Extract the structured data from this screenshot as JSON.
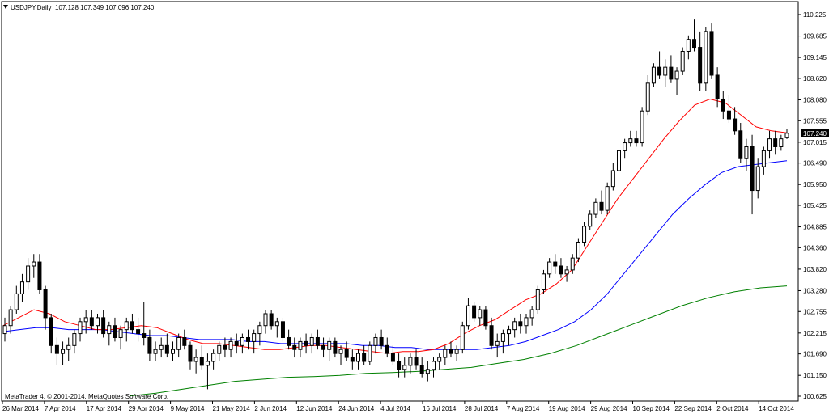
{
  "header": {
    "symbol_label": "USDJPY,Daily",
    "ohlc_label": "107.128 107.349 107.096 107.240"
  },
  "footer": {
    "copyright": "MetaTrader 4, © 2001-2014, MetaQuotes Software Corp."
  },
  "current_price_label": "107.240",
  "colors": {
    "background": "#ffffff",
    "candle": "#000000",
    "ma_red": "#ff0000",
    "ma_blue": "#0000ff",
    "ma_green": "#008000",
    "price_tag_bg": "#000000",
    "price_tag_fg": "#ffffff"
  },
  "chart_data": {
    "type": "candlestick",
    "y_ticks": [
      "110.225",
      "109.685",
      "109.145",
      "108.620",
      "108.080",
      "107.555",
      "107.015",
      "106.490",
      "105.950",
      "105.425",
      "104.885",
      "104.360",
      "103.820",
      "103.280",
      "102.755",
      "102.215",
      "101.690",
      "101.150",
      "100.625"
    ],
    "x_ticks": [
      "26 Mar 2014",
      "7 Apr 2014",
      "17 Apr 2014",
      "29 Apr 2014",
      "9 May 2014",
      "21 May 2014",
      "2 Jun 2014",
      "12 Jun 2014",
      "24 Jun 2014",
      "4 Jul 2014",
      "16 Jul 2014",
      "28 Jul 2014",
      "7 Aug 2014",
      "19 Aug 2014",
      "29 Aug 2014",
      "10 Sep 2014",
      "22 Sep 2014",
      "2 Oct 2014",
      "14 Oct 2014"
    ],
    "ylim": [
      100.625,
      110.225
    ],
    "candles": [
      [
        102.2,
        102.6,
        102.0,
        102.4
      ],
      [
        102.4,
        102.9,
        102.2,
        102.8
      ],
      [
        102.8,
        103.4,
        102.7,
        103.2
      ],
      [
        103.2,
        103.7,
        103.0,
        103.5
      ],
      [
        103.5,
        104.1,
        103.3,
        103.9
      ],
      [
        103.9,
        104.2,
        103.6,
        104.0
      ],
      [
        104.0,
        104.2,
        103.2,
        103.3
      ],
      [
        103.3,
        103.4,
        102.3,
        102.6
      ],
      [
        102.6,
        102.7,
        101.7,
        101.9
      ],
      [
        101.9,
        102.1,
        101.4,
        101.7
      ],
      [
        101.7,
        102.0,
        101.4,
        101.8
      ],
      [
        101.8,
        102.1,
        101.5,
        101.9
      ],
      [
        101.9,
        102.3,
        101.7,
        102.2
      ],
      [
        102.2,
        102.6,
        102.0,
        102.5
      ],
      [
        102.5,
        102.8,
        102.2,
        102.6
      ],
      [
        102.6,
        102.8,
        102.3,
        102.4
      ],
      [
        102.4,
        102.7,
        102.2,
        102.6
      ],
      [
        102.6,
        102.8,
        102.1,
        102.2
      ],
      [
        102.2,
        102.5,
        101.9,
        102.4
      ],
      [
        102.4,
        102.6,
        102.0,
        102.1
      ],
      [
        102.1,
        102.4,
        101.8,
        102.3
      ],
      [
        102.3,
        102.6,
        102.0,
        102.5
      ],
      [
        102.5,
        102.7,
        102.2,
        102.3
      ],
      [
        102.3,
        102.6,
        102.0,
        102.2
      ],
      [
        102.2,
        103.0,
        101.9,
        102.1
      ],
      [
        102.1,
        102.3,
        101.5,
        101.7
      ],
      [
        101.7,
        102.0,
        101.5,
        101.8
      ],
      [
        101.8,
        102.1,
        101.6,
        101.9
      ],
      [
        101.9,
        102.2,
        101.6,
        101.7
      ],
      [
        101.7,
        102.0,
        101.5,
        101.8
      ],
      [
        101.8,
        102.2,
        101.6,
        102.1
      ],
      [
        102.1,
        102.3,
        101.8,
        101.9
      ],
      [
        101.9,
        102.0,
        101.3,
        101.5
      ],
      [
        101.5,
        101.8,
        101.2,
        101.6
      ],
      [
        101.6,
        101.9,
        101.3,
        101.4
      ],
      [
        101.4,
        101.7,
        100.8,
        101.5
      ],
      [
        101.5,
        101.8,
        101.3,
        101.7
      ],
      [
        101.7,
        102.0,
        101.5,
        101.9
      ],
      [
        101.9,
        102.1,
        101.6,
        101.8
      ],
      [
        101.8,
        102.1,
        101.6,
        102.0
      ],
      [
        102.0,
        102.2,
        101.7,
        101.9
      ],
      [
        101.9,
        102.2,
        101.7,
        102.1
      ],
      [
        102.1,
        102.3,
        101.8,
        102.0
      ],
      [
        102.0,
        102.3,
        101.7,
        102.2
      ],
      [
        102.2,
        102.5,
        101.9,
        102.4
      ],
      [
        102.4,
        102.8,
        102.2,
        102.7
      ],
      [
        102.7,
        102.8,
        102.3,
        102.4
      ],
      [
        102.4,
        102.6,
        102.1,
        102.5
      ],
      [
        102.5,
        102.6,
        102.0,
        102.1
      ],
      [
        102.1,
        102.3,
        101.8,
        101.9
      ],
      [
        101.9,
        102.1,
        101.6,
        101.8
      ],
      [
        101.8,
        102.1,
        101.6,
        102.0
      ],
      [
        102.0,
        102.2,
        101.7,
        101.9
      ],
      [
        101.9,
        102.2,
        101.7,
        102.1
      ],
      [
        102.1,
        102.3,
        101.8,
        101.9
      ],
      [
        101.9,
        102.1,
        101.6,
        101.8
      ],
      [
        101.8,
        102.1,
        101.5,
        102.0
      ],
      [
        102.0,
        102.1,
        101.6,
        101.7
      ],
      [
        101.7,
        101.9,
        101.4,
        101.8
      ],
      [
        101.8,
        102.0,
        101.5,
        101.6
      ],
      [
        101.6,
        101.8,
        101.3,
        101.5
      ],
      [
        101.5,
        101.8,
        101.3,
        101.7
      ],
      [
        101.7,
        101.9,
        101.4,
        101.5
      ],
      [
        101.5,
        102.0,
        101.4,
        101.9
      ],
      [
        101.9,
        102.2,
        101.7,
        102.1
      ],
      [
        102.1,
        102.3,
        101.8,
        101.9
      ],
      [
        101.9,
        102.1,
        101.6,
        101.7
      ],
      [
        101.7,
        101.9,
        101.4,
        101.5
      ],
      [
        101.5,
        101.7,
        101.1,
        101.3
      ],
      [
        101.3,
        101.6,
        101.1,
        101.4
      ],
      [
        101.4,
        101.7,
        101.2,
        101.6
      ],
      [
        101.6,
        101.8,
        101.3,
        101.4
      ],
      [
        101.4,
        101.6,
        101.1,
        101.2
      ],
      [
        101.2,
        101.5,
        101.0,
        101.3
      ],
      [
        101.3,
        101.6,
        101.1,
        101.5
      ],
      [
        101.5,
        101.7,
        101.3,
        101.6
      ],
      [
        101.6,
        101.9,
        101.4,
        101.8
      ],
      [
        101.8,
        102.0,
        101.6,
        101.7
      ],
      [
        101.7,
        101.9,
        101.5,
        101.8
      ],
      [
        101.8,
        102.5,
        101.7,
        102.4
      ],
      [
        102.4,
        103.1,
        102.3,
        102.9
      ],
      [
        102.9,
        103.0,
        102.5,
        102.6
      ],
      [
        102.6,
        102.9,
        102.4,
        102.8
      ],
      [
        102.8,
        102.9,
        102.3,
        102.4
      ],
      [
        102.4,
        102.6,
        101.8,
        101.9
      ],
      [
        101.9,
        102.2,
        101.6,
        102.0
      ],
      [
        102.0,
        102.3,
        101.7,
        102.2
      ],
      [
        102.2,
        102.4,
        101.9,
        102.3
      ],
      [
        102.3,
        102.6,
        102.1,
        102.5
      ],
      [
        102.5,
        102.7,
        102.2,
        102.4
      ],
      [
        102.4,
        102.7,
        102.2,
        102.6
      ],
      [
        102.6,
        102.9,
        102.4,
        102.8
      ],
      [
        102.8,
        103.4,
        102.7,
        103.3
      ],
      [
        103.3,
        103.8,
        103.2,
        103.7
      ],
      [
        103.7,
        104.1,
        103.6,
        104.0
      ],
      [
        104.0,
        104.2,
        103.7,
        103.9
      ],
      [
        103.9,
        104.1,
        103.6,
        103.7
      ],
      [
        103.7,
        103.9,
        103.5,
        103.8
      ],
      [
        103.8,
        104.2,
        103.7,
        104.1
      ],
      [
        104.1,
        104.6,
        104.0,
        104.5
      ],
      [
        104.5,
        105.0,
        104.4,
        104.9
      ],
      [
        104.9,
        105.3,
        104.8,
        105.2
      ],
      [
        105.2,
        105.6,
        105.1,
        105.5
      ],
      [
        105.5,
        105.8,
        105.2,
        105.3
      ],
      [
        105.3,
        106.0,
        105.2,
        105.9
      ],
      [
        105.9,
        106.5,
        105.8,
        106.3
      ],
      [
        106.3,
        106.9,
        106.2,
        106.8
      ],
      [
        106.8,
        107.1,
        106.6,
        107.0
      ],
      [
        107.0,
        107.3,
        106.9,
        107.1
      ],
      [
        107.1,
        107.3,
        106.9,
        107.0
      ],
      [
        107.0,
        107.9,
        106.9,
        107.8
      ],
      [
        107.8,
        108.7,
        107.7,
        108.5
      ],
      [
        108.5,
        109.0,
        108.4,
        108.9
      ],
      [
        108.9,
        109.3,
        108.6,
        108.7
      ],
      [
        108.7,
        109.1,
        108.4,
        108.9
      ],
      [
        108.9,
        109.2,
        108.5,
        108.6
      ],
      [
        108.6,
        108.9,
        108.2,
        108.8
      ],
      [
        108.8,
        109.4,
        108.7,
        109.3
      ],
      [
        109.3,
        109.7,
        109.1,
        109.6
      ],
      [
        109.6,
        110.1,
        109.3,
        109.4
      ],
      [
        109.4,
        109.8,
        108.3,
        108.5
      ],
      [
        108.5,
        109.9,
        108.3,
        109.8
      ],
      [
        109.8,
        110.0,
        108.6,
        108.7
      ],
      [
        108.7,
        108.9,
        107.9,
        108.1
      ],
      [
        108.1,
        108.3,
        107.6,
        107.8
      ],
      [
        107.8,
        108.2,
        107.5,
        107.6
      ],
      [
        107.6,
        107.9,
        107.2,
        107.3
      ],
      [
        107.3,
        107.5,
        106.5,
        106.6
      ],
      [
        106.6,
        107.1,
        106.3,
        106.9
      ],
      [
        106.9,
        107.2,
        105.2,
        105.8
      ],
      [
        105.8,
        106.6,
        105.6,
        106.4
      ],
      [
        106.4,
        106.9,
        106.2,
        106.8
      ],
      [
        106.8,
        107.3,
        106.6,
        107.1
      ],
      [
        107.1,
        107.3,
        106.7,
        106.9
      ],
      [
        106.9,
        107.2,
        106.8,
        107.1
      ],
      [
        107.128,
        107.349,
        107.096,
        107.24
      ]
    ],
    "ma_fast_red": [
      102.4,
      102.6,
      102.8,
      102.7,
      102.5,
      102.4,
      102.3,
      102.3,
      102.35,
      102.4,
      102.35,
      102.2,
      102.05,
      101.95,
      101.95,
      101.9,
      101.85,
      101.8,
      101.8,
      101.85,
      101.9,
      101.9,
      101.85,
      101.8,
      101.75,
      101.7,
      101.75,
      101.75,
      101.8,
      101.95,
      102.2,
      102.4,
      102.55,
      102.8,
      103.05,
      103.2,
      103.45,
      103.8,
      104.4,
      105.0,
      105.6,
      106.1,
      106.6,
      107.1,
      107.55,
      107.95,
      108.1,
      108.0,
      107.7,
      107.4,
      107.3,
      107.25
    ],
    "ma_mid_blue": [
      102.25,
      102.3,
      102.35,
      102.35,
      102.3,
      102.3,
      102.3,
      102.25,
      102.2,
      102.15,
      102.15,
      102.1,
      102.05,
      102.05,
      102.05,
      102.0,
      102.0,
      101.95,
      101.95,
      101.95,
      101.95,
      101.95,
      101.9,
      101.9,
      101.85,
      101.85,
      101.8,
      101.8,
      101.8,
      101.8,
      101.85,
      101.9,
      102.0,
      102.15,
      102.3,
      102.5,
      102.8,
      103.2,
      103.7,
      104.2,
      104.7,
      105.2,
      105.6,
      105.95,
      106.25,
      106.4,
      106.45,
      106.5,
      106.55
    ],
    "ma_slow_green": [
      100.63,
      100.7,
      100.8,
      100.9,
      101.0,
      101.05,
      101.1,
      101.12,
      101.15,
      101.2,
      101.22,
      101.25,
      101.3,
      101.35,
      101.45,
      101.55,
      101.7,
      101.9,
      102.15,
      102.4,
      102.65,
      102.9,
      103.1,
      103.25,
      103.35,
      103.4
    ]
  }
}
